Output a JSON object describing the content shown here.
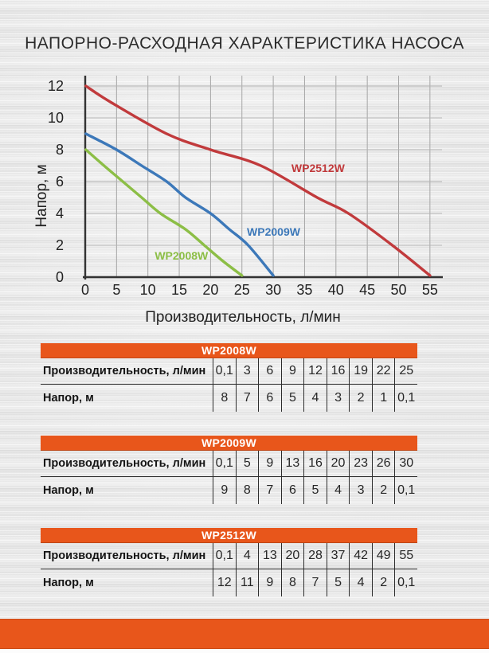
{
  "page": {
    "title": "НАПОРНО-РАСХОДНАЯ ХАРАКТЕРИСТИКА НАСОСА"
  },
  "colors": {
    "accent_orange": "#E8561B",
    "series_red": "#C13A3C",
    "series_blue": "#3C78B9",
    "series_green": "#8CBE46",
    "axis": "#333333",
    "grid_vertical": "#a6a6a6",
    "grid_horizontal": "#b3b3b3",
    "tick_text": "#222222",
    "title_text": "#2b2b2b"
  },
  "chart_data": {
    "type": "line",
    "title": "",
    "xlabel": "Производительность, л/мин",
    "ylabel": "Напор, м",
    "xlim": [
      0,
      57
    ],
    "ylim": [
      0,
      12.65
    ],
    "xticks": [
      0,
      5,
      10,
      15,
      20,
      25,
      30,
      35,
      40,
      45,
      50,
      55
    ],
    "yticks": [
      0,
      2,
      4,
      6,
      8,
      10,
      12
    ],
    "grid": true,
    "legend_position": "inline-labels",
    "series": [
      {
        "name": "WP2008W",
        "color": "#8CBE46",
        "x": [
          0.1,
          3,
          6,
          9,
          12,
          16,
          19,
          22,
          25
        ],
        "y": [
          8,
          7,
          6,
          5,
          4,
          3,
          2,
          1,
          0.1
        ],
        "label_pos": {
          "x": 11.1,
          "y": 1.35
        }
      },
      {
        "name": "WP2009W",
        "color": "#3C78B9",
        "x": [
          0.1,
          5,
          9,
          13,
          16,
          20,
          23,
          26,
          30
        ],
        "y": [
          9,
          8,
          7,
          6,
          5,
          4,
          3,
          2,
          0.1
        ],
        "label_pos": {
          "x": 25.8,
          "y": 2.85
        }
      },
      {
        "name": "WP2512W",
        "color": "#C13A3C",
        "x": [
          0.1,
          4,
          13,
          20,
          28,
          37,
          42,
          49,
          55
        ],
        "y": [
          12,
          11,
          9,
          8,
          7,
          5,
          4,
          2,
          0.1
        ],
        "label_pos": {
          "x": 32.9,
          "y": 6.85
        }
      }
    ]
  },
  "tables": [
    {
      "header": "WP2008W",
      "rows": [
        {
          "label": "Производительность, л/мин",
          "values": [
            "0,1",
            "3",
            "6",
            "9",
            "12",
            "16",
            "19",
            "22",
            "25"
          ]
        },
        {
          "label": "Напор, м",
          "values": [
            "8",
            "7",
            "6",
            "5",
            "4",
            "3",
            "2",
            "1",
            "0,1"
          ]
        }
      ]
    },
    {
      "header": "WP2009W",
      "rows": [
        {
          "label": "Производительность, л/мин",
          "values": [
            "0,1",
            "5",
            "9",
            "13",
            "16",
            "20",
            "23",
            "26",
            "30"
          ]
        },
        {
          "label": "Напор, м",
          "values": [
            "9",
            "8",
            "7",
            "6",
            "5",
            "4",
            "3",
            "2",
            "0,1"
          ]
        }
      ]
    },
    {
      "header": "WP2512W",
      "rows": [
        {
          "label": "Производительность, л/мин",
          "values": [
            "0,1",
            "4",
            "13",
            "20",
            "28",
            "37",
            "42",
            "49",
            "55"
          ]
        },
        {
          "label": "Напор, м",
          "values": [
            "12",
            "11",
            "9",
            "8",
            "7",
            "5",
            "4",
            "2",
            "0,1"
          ]
        }
      ]
    }
  ]
}
